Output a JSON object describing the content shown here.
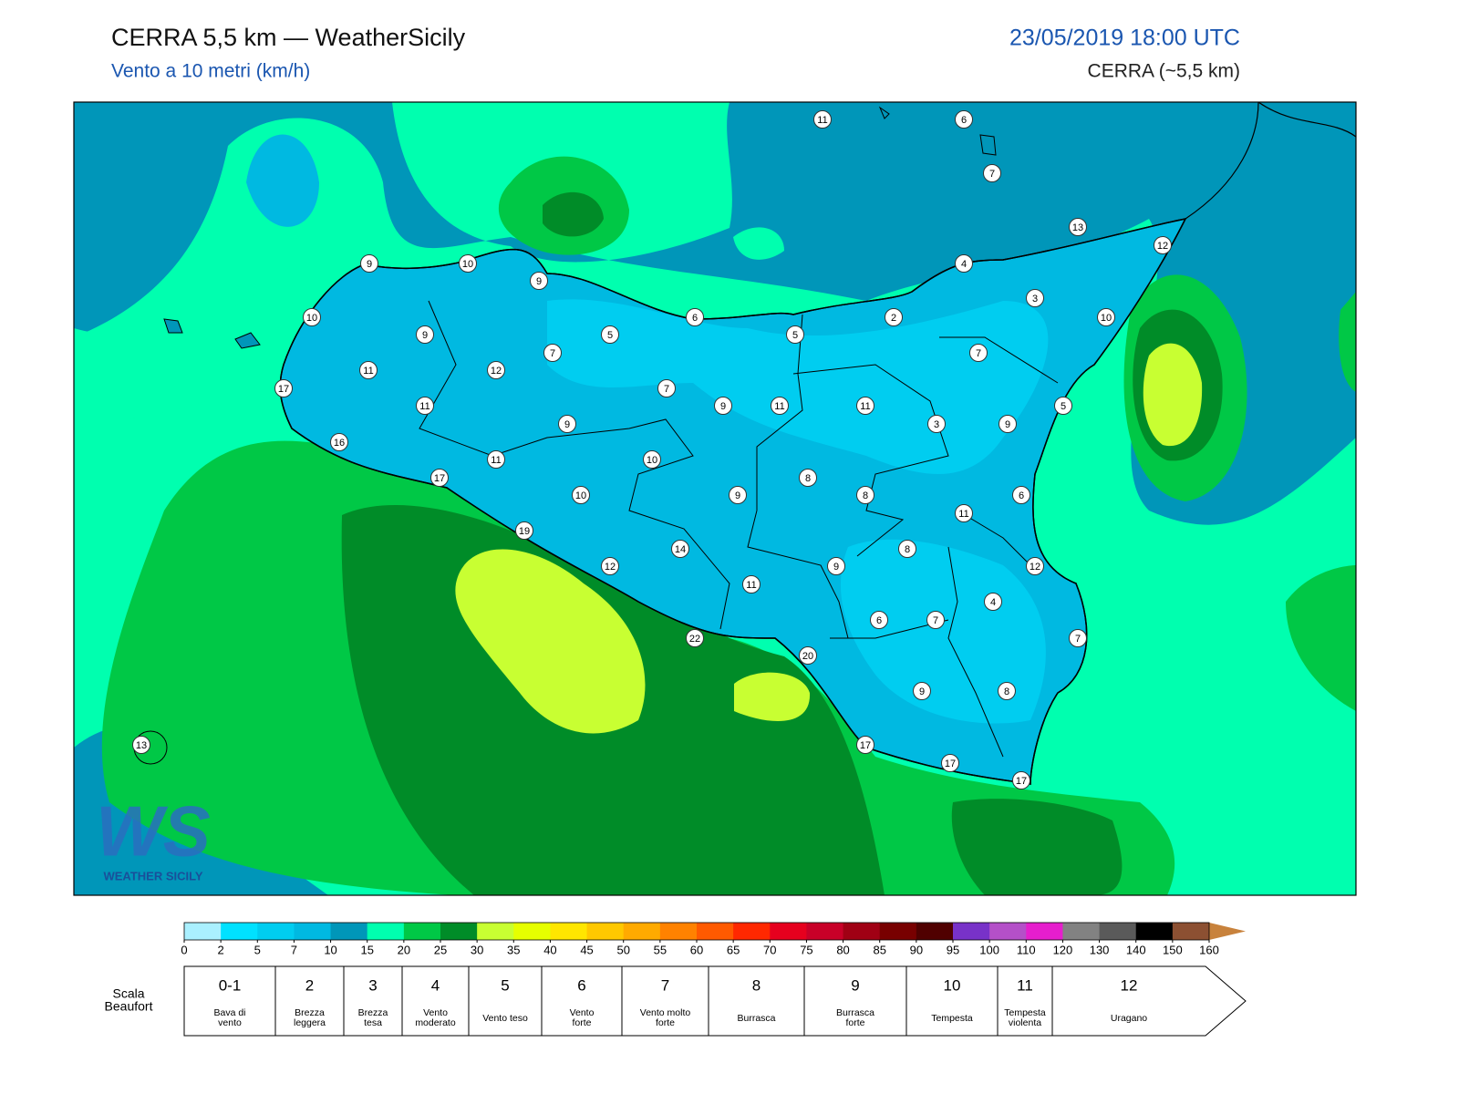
{
  "header": {
    "title": "CERRA 5,5 km — WeatherSicily",
    "subtitle": "Vento a 10 metri (km/h)",
    "datetime": "23/05/2019 18:00 UTC",
    "model": "CERRA (~5,5 km)"
  },
  "logo": {
    "mark": "WS",
    "text": "WEATHER SICILY"
  },
  "stations": [
    11,
    6,
    7,
    13,
    12,
    9,
    10,
    9,
    4,
    3,
    10,
    6,
    5,
    2,
    10,
    9,
    5,
    7,
    7,
    11,
    12,
    17,
    7,
    11,
    9,
    11,
    11,
    5,
    9,
    3,
    9,
    16,
    11,
    10,
    17,
    8,
    10,
    9,
    8,
    6,
    11,
    19,
    14,
    8,
    12,
    9,
    12,
    11,
    4,
    6,
    7,
    7,
    22,
    20,
    9,
    8,
    17,
    17,
    17,
    13
  ],
  "colorbar": {
    "ticks": [
      0,
      2,
      5,
      7,
      10,
      15,
      20,
      25,
      30,
      35,
      40,
      45,
      50,
      55,
      60,
      65,
      70,
      75,
      80,
      85,
      90,
      95,
      100,
      110,
      120,
      130,
      140,
      150,
      160
    ],
    "colors": [
      "#aaf0ff",
      "#00e1ff",
      "#00cdf0",
      "#00b9e1",
      "#0096b9",
      "#00ffaf",
      "#00c846",
      "#008c28",
      "#c8ff32",
      "#e6ff00",
      "#ffe600",
      "#ffc800",
      "#ffaa00",
      "#ff8200",
      "#ff5a00",
      "#ff2800",
      "#e6001e",
      "#c80028",
      "#a00014",
      "#780000",
      "#500000",
      "#7832c8",
      "#b450c8",
      "#e61ecd",
      "#828282",
      "#5a5a5a",
      "#000000",
      "#8c5032",
      "#c8823c",
      "#d28c46"
    ]
  },
  "beaufort": {
    "label": [
      "Scala",
      "Beaufort"
    ],
    "classes": [
      {
        "force": "0-1",
        "desc": [
          "Bava di",
          "vento"
        ]
      },
      {
        "force": 2,
        "desc": [
          "Brezza",
          "leggera"
        ]
      },
      {
        "force": 3,
        "desc": [
          "Brezza",
          "tesa"
        ]
      },
      {
        "force": 4,
        "desc": [
          "Vento",
          "moderato"
        ]
      },
      {
        "force": 5,
        "desc": [
          "Vento teso"
        ]
      },
      {
        "force": 6,
        "desc": [
          "Vento",
          "forte"
        ]
      },
      {
        "force": 7,
        "desc": [
          "Vento molto",
          "forte"
        ]
      },
      {
        "force": 8,
        "desc": [
          "Burrasca"
        ]
      },
      {
        "force": 9,
        "desc": [
          "Burrasca",
          "forte"
        ]
      },
      {
        "force": 10,
        "desc": [
          "Tempesta"
        ]
      },
      {
        "force": 11,
        "desc": [
          "Tempesta",
          "violenta"
        ]
      },
      {
        "force": 12,
        "desc": [
          "Uragano"
        ]
      }
    ]
  }
}
